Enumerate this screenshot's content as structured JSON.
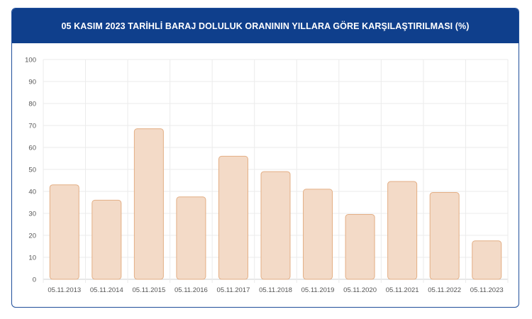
{
  "header": {
    "title": "05 KASIM 2023 TARİHLİ BARAJ DOLULUK ORANININ YILLARA GÖRE KARŞILAŞTIRILMASI (%)"
  },
  "colors": {
    "header_bg": "#0f3f8c",
    "bar_fill": "#f3dac7",
    "bar_stroke": "#e3ae84",
    "grid": "#ebebeb"
  },
  "chart_data": {
    "type": "bar",
    "title": "05 KASIM 2023 TARİHLİ BARAJ DOLULUK ORANININ YILLARA GÖRE KARŞILAŞTIRILMASI (%)",
    "xlabel": "",
    "ylabel": "",
    "categories": [
      "05.11.2013",
      "05.11.2014",
      "05.11.2015",
      "05.11.2016",
      "05.11.2017",
      "05.11.2018",
      "05.11.2019",
      "05.11.2020",
      "05.11.2021",
      "05.11.2022",
      "05.11.2023"
    ],
    "values": [
      43,
      36,
      68.5,
      37.5,
      56,
      49,
      41,
      29.5,
      44.5,
      39.5,
      17.5
    ],
    "ylim": [
      0,
      100
    ],
    "yticks": [
      0,
      10,
      20,
      30,
      40,
      50,
      60,
      70,
      80,
      90,
      100
    ],
    "grid": true,
    "legend": "none"
  }
}
